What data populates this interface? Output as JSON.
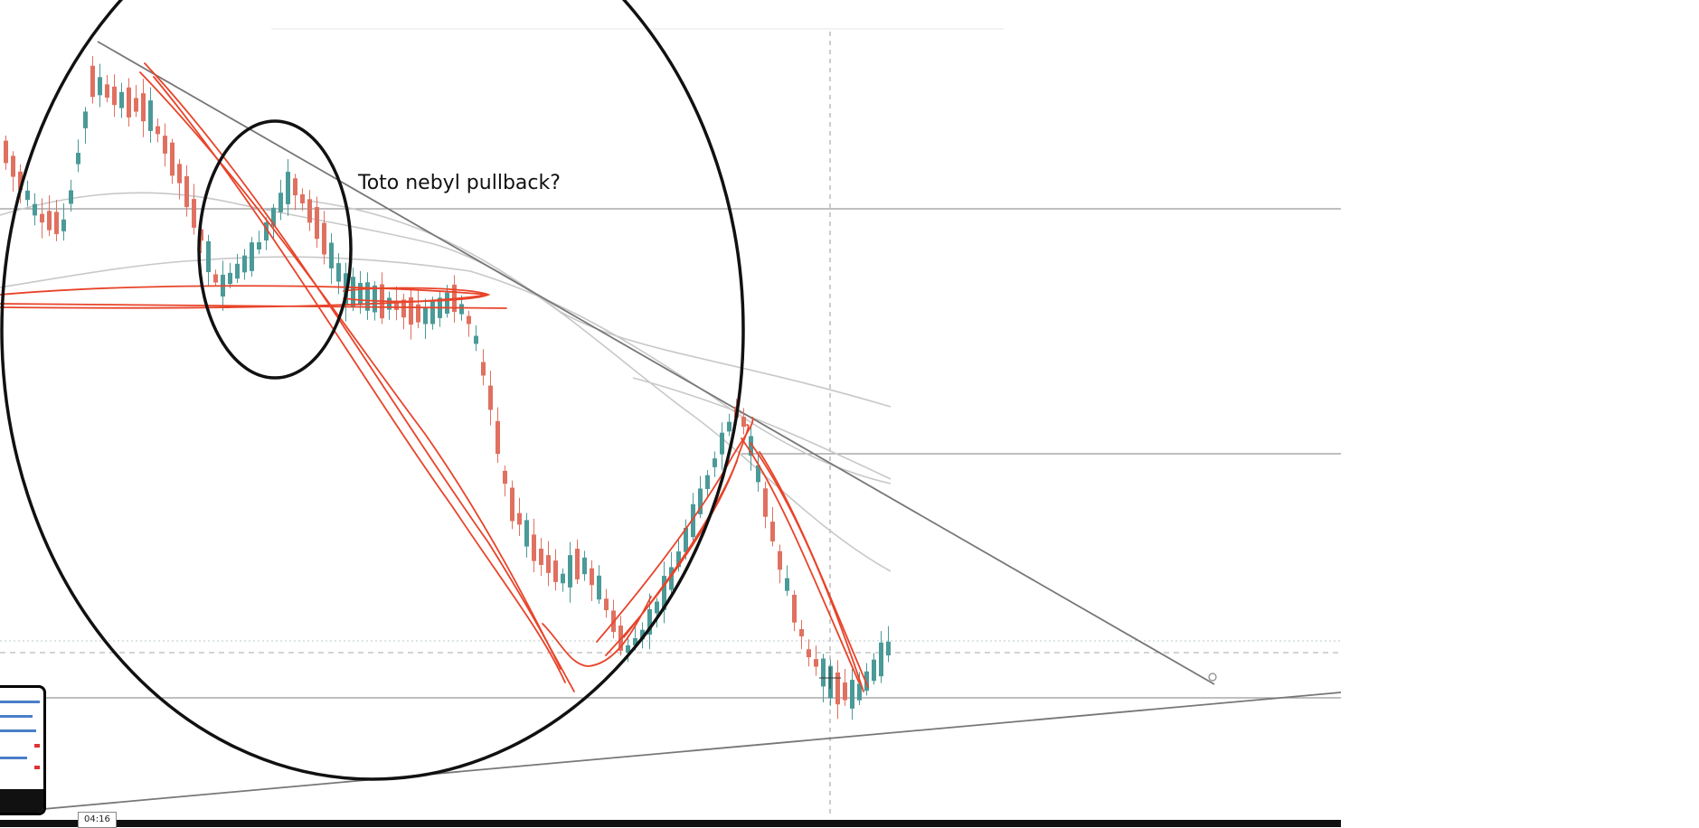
{
  "annotation": {
    "text": "Toto nebyl pullback?"
  },
  "player": {
    "timestamp": "04:16"
  },
  "colors": {
    "bull": "#4a9a98",
    "bear": "#e07060",
    "ink": "#111111",
    "red_pen": "#e8442a",
    "ma": "#c8c8c8",
    "trendline": "#777777",
    "level": "#999999"
  },
  "icons": {
    "cursor": "crosshair-cursor-icon",
    "handle": "trendline-handle-icon"
  }
}
